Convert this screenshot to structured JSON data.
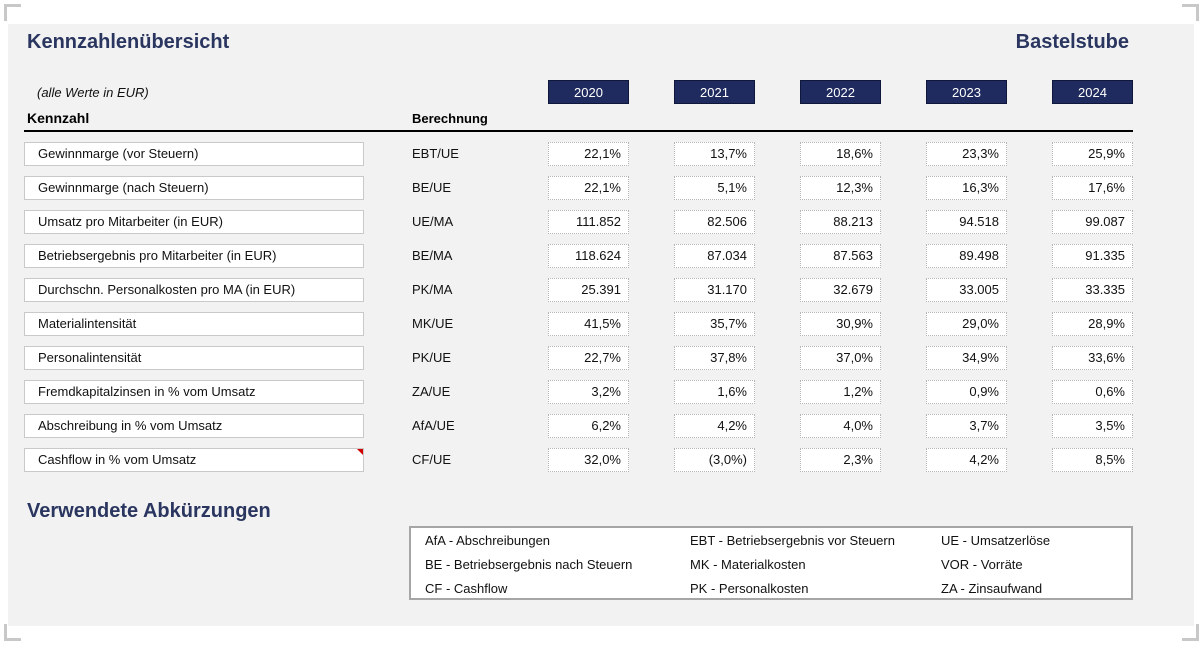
{
  "title": "Kennzahlenübersicht",
  "company": "Bastelstube",
  "subtitle": "(alle Werte in EUR)",
  "header": {
    "kennzahl": "Kennzahl",
    "berechnung": "Berechnung"
  },
  "years": [
    "2020",
    "2021",
    "2022",
    "2023",
    "2024"
  ],
  "rows": [
    {
      "label": "Gewinnmarge (vor Steuern)",
      "calc": "EBT/UE",
      "values": [
        "22,1%",
        "13,7%",
        "18,6%",
        "23,3%",
        "25,9%"
      ]
    },
    {
      "label": "Gewinnmarge (nach Steuern)",
      "calc": "BE/UE",
      "values": [
        "22,1%",
        "5,1%",
        "12,3%",
        "16,3%",
        "17,6%"
      ]
    },
    {
      "label": "Umsatz pro Mitarbeiter (in EUR)",
      "calc": "UE/MA",
      "values": [
        "111.852",
        "82.506",
        "88.213",
        "94.518",
        "99.087"
      ]
    },
    {
      "label": "Betriebsergebnis pro Mitarbeiter (in EUR)",
      "calc": "BE/MA",
      "values": [
        "118.624",
        "87.034",
        "87.563",
        "89.498",
        "91.335"
      ]
    },
    {
      "label": "Durchschn. Personalkosten pro MA (in EUR)",
      "calc": "PK/MA",
      "values": [
        "25.391",
        "31.170",
        "32.679",
        "33.005",
        "33.335"
      ]
    },
    {
      "label": "Materialintensität",
      "calc": "MK/UE",
      "values": [
        "41,5%",
        "35,7%",
        "30,9%",
        "29,0%",
        "28,9%"
      ]
    },
    {
      "label": "Personalintensität",
      "calc": "PK/UE",
      "values": [
        "22,7%",
        "37,8%",
        "37,0%",
        "34,9%",
        "33,6%"
      ]
    },
    {
      "label": "Fremdkapitalzinsen in % vom Umsatz",
      "calc": "ZA/UE",
      "values": [
        "3,2%",
        "1,6%",
        "1,2%",
        "0,9%",
        "0,6%"
      ]
    },
    {
      "label": "Abschreibung in % vom Umsatz",
      "calc": "AfA/UE",
      "values": [
        "6,2%",
        "4,2%",
        "4,0%",
        "3,7%",
        "3,5%"
      ]
    },
    {
      "label": "Cashflow in % vom Umsatz",
      "calc": "CF/UE",
      "values": [
        "32,0%",
        "(3,0%)",
        "2,3%",
        "4,2%",
        "8,5%"
      ]
    }
  ],
  "abbreviations": {
    "title": "Verwendete Abkürzungen",
    "items": [
      "AfA - Abschreibungen",
      "EBT - Betriebsergebnis vor Steuern",
      "UE - Umsatzerlöse",
      "BE - Betriebsergebnis nach Steuern",
      "MK - Materialkosten",
      "VOR - Vorräte",
      "CF - Cashflow",
      "PK - Personalkosten",
      "ZA - Zinsaufwand"
    ]
  },
  "colors": {
    "title": "#2a3660",
    "year_header_bg": "#1f2b5e",
    "sheet_bg": "#f2f2f2",
    "comment_flag": "#d00000"
  }
}
